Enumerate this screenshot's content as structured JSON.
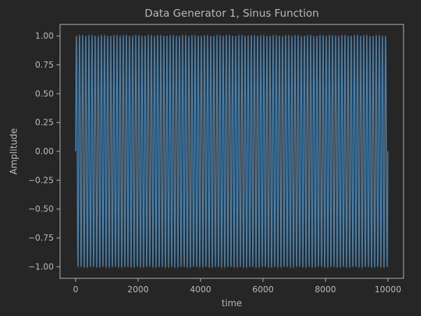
{
  "chart_data": {
    "type": "line",
    "title": "Data Generator 1, Sinus Function",
    "xlabel": "time",
    "ylabel": "Amplitude",
    "xlim": [
      -500,
      10500
    ],
    "ylim": [
      -1.1,
      1.1
    ],
    "x_ticks": [
      "0",
      "2000",
      "4000",
      "6000",
      "8000",
      "10000"
    ],
    "y_ticks": [
      "1.00",
      "0.75",
      "0.50",
      "0.25",
      "0.00",
      "−0.25",
      "−0.50",
      "−0.75",
      "−1.00"
    ],
    "grid": false,
    "series": [
      {
        "x_start": 0,
        "x_end": 10000,
        "amplitude": 1.0,
        "period": 100,
        "line_color": "#4a7fa8"
      }
    ]
  },
  "colors": {
    "background": "#262626",
    "axes": "#b8b8b8",
    "text": "#b8b8b8"
  }
}
